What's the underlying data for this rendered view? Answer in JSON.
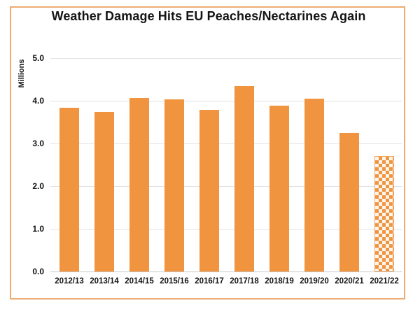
{
  "chart_data": {
    "type": "bar",
    "title": "Weather Damage Hits EU Peaches/Nectarines Again",
    "xlabel": "",
    "ylabel": "Millions",
    "categories": [
      "2012/13",
      "2013/14",
      "2014/15",
      "2015/16",
      "2016/17",
      "2017/18",
      "2018/19",
      "2019/20",
      "2020/21",
      "2021/22"
    ],
    "values": [
      3.84,
      3.74,
      4.06,
      4.04,
      3.78,
      4.35,
      3.88,
      4.05,
      3.24,
      2.7
    ],
    "ylim": [
      0,
      5
    ],
    "ytick_labels": [
      "0.0",
      "1.0",
      "2.0",
      "3.0",
      "4.0",
      "5.0"
    ],
    "grid": true,
    "legend_position": "none",
    "patterned_bar_index": 9,
    "pattern_style": "checkerboard",
    "colors": {
      "bar": "#F0943F",
      "frame": "#EDAC72",
      "gridline": "#E3E3E3",
      "axis_line": "#C6C6C6",
      "text": "#141414"
    }
  }
}
